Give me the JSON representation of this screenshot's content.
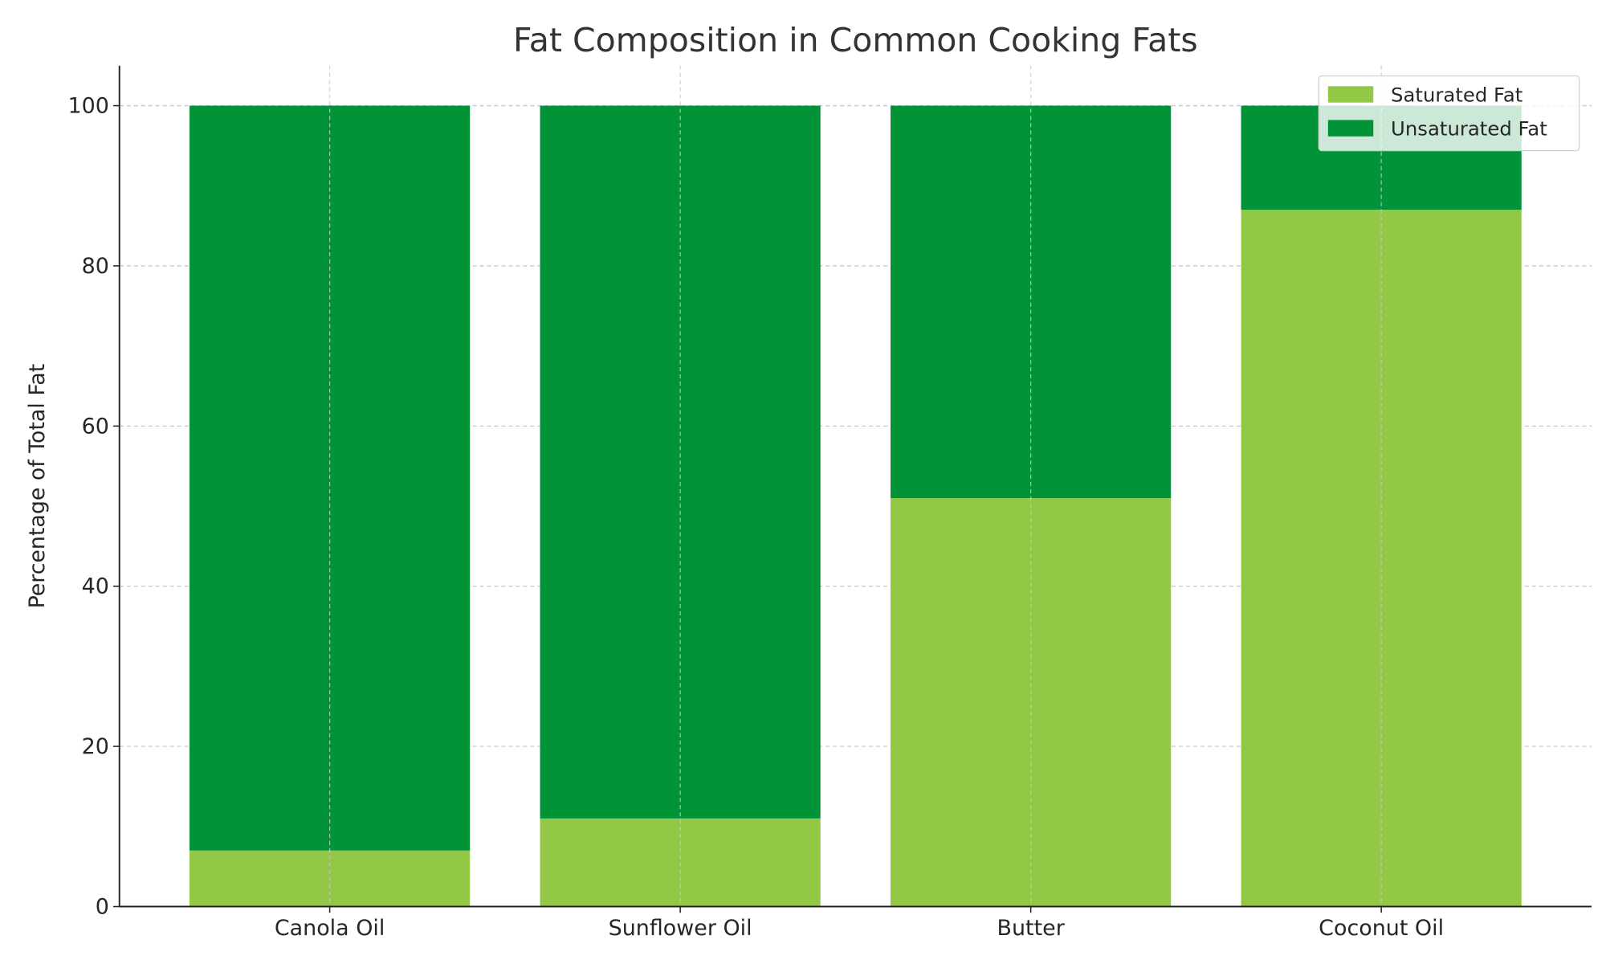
{
  "chart_data": {
    "type": "bar",
    "stacked": true,
    "title": "Fat Composition in Common Cooking Fats",
    "xlabel": "",
    "ylabel": "Percentage of Total Fat",
    "categories": [
      "Canola Oil",
      "Sunflower Oil",
      "Butter",
      "Coconut Oil"
    ],
    "series": [
      {
        "name": "Saturated Fat",
        "values": [
          7,
          11,
          51,
          87
        ],
        "color": "#92c846"
      },
      {
        "name": "Unsaturated Fat",
        "values": [
          93,
          89,
          49,
          13
        ],
        "color": "#009338"
      }
    ],
    "ylim": [
      0,
      105
    ],
    "yticks": [
      0,
      20,
      40,
      60,
      80,
      100
    ],
    "grid": true,
    "legend_position": "top-right"
  }
}
